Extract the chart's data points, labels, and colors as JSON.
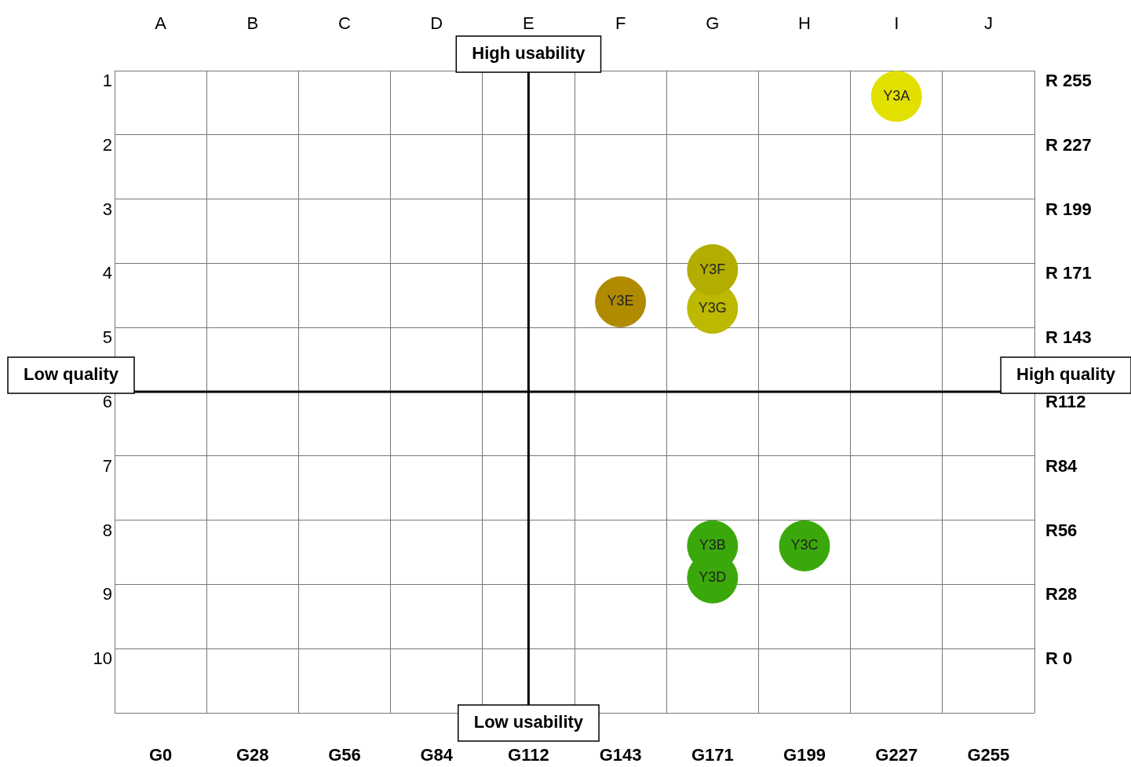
{
  "chart_data": {
    "type": "scatter",
    "marker": "circle",
    "grid": true,
    "legend": false,
    "categories": [
      "A",
      "B",
      "C",
      "D",
      "E",
      "F",
      "G",
      "H",
      "I",
      "J"
    ],
    "ylim": [
      11,
      1
    ],
    "yticks": [
      1,
      2,
      3,
      4,
      5,
      6,
      7,
      8,
      9,
      10,
      {
        "value": 11,
        "label": null
      }
    ],
    "ref_lines": [
      {
        "axis": "x",
        "value": "E",
        "color": "#000000"
      }
    ],
    "annotations": [
      "High usability",
      "Low usability",
      "Low quality",
      "High quality",
      "G0",
      "G28",
      "G56",
      "G84",
      "G112",
      "G143",
      "G171",
      "G199",
      "G227",
      "G255",
      "R 255",
      "R 227",
      "R 199",
      "R 171",
      "R 143",
      "R112",
      "R84",
      "R56",
      "R28",
      "R 0"
    ],
    "series": [
      {
        "name": "Y3A",
        "color": "#e2e000",
        "x": [
          "I"
        ],
        "values": [
          1.4
        ]
      },
      {
        "name": "Y3E",
        "color": "#b08b00",
        "x": [
          "F"
        ],
        "values": [
          4.6
        ]
      },
      {
        "name": "Y3F",
        "color": "#b3ad00",
        "x": [
          "G"
        ],
        "values": [
          4.1
        ]
      },
      {
        "name": "Y3G",
        "color": "#bdb800",
        "x": [
          "G"
        ],
        "values": [
          4.7
        ]
      },
      {
        "name": "Y3B",
        "color": "#3aa80a",
        "x": [
          "G"
        ],
        "values": [
          8.4
        ]
      },
      {
        "name": "Y3C",
        "color": "#3aa80a",
        "x": [
          "H"
        ],
        "values": [
          8.4
        ]
      },
      {
        "name": "Y3D",
        "color": "#3aa80a",
        "x": [
          "G"
        ],
        "values": [
          8.9
        ]
      }
    ]
  }
}
